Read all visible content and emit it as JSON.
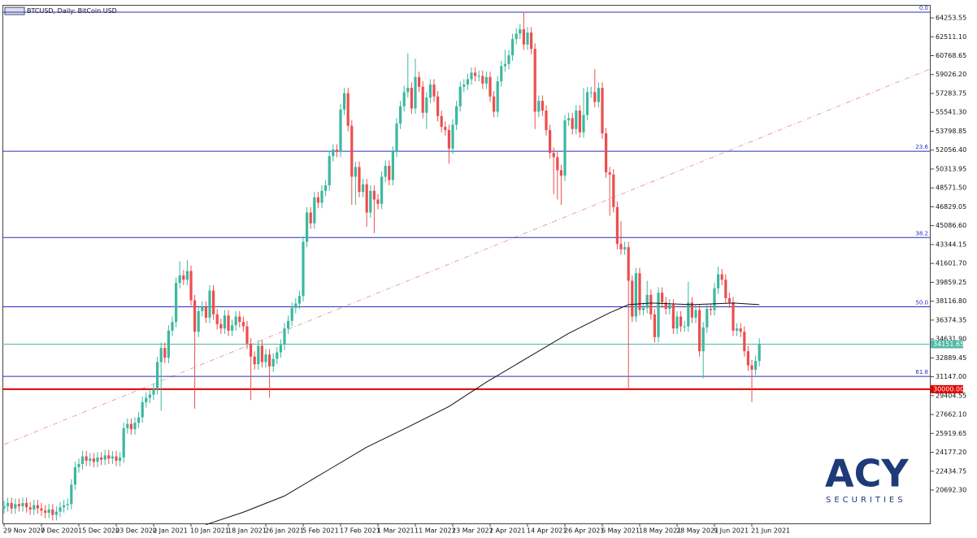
{
  "chart_data": {
    "type": "candlestick",
    "title": "BTCUSD, Daily:  BitCoin USD",
    "categories": [
      "29 Nov 2020",
      null,
      null,
      null,
      null,
      null,
      null,
      null,
      null,
      null,
      "7 Dec 2020",
      null,
      null,
      null,
      null,
      null,
      null,
      null,
      null,
      null,
      "15 Dec 2020",
      null,
      null,
      null,
      null,
      null,
      null,
      null,
      null,
      null,
      "23 Dec 2020",
      null,
      null,
      null,
      null,
      null,
      null,
      null,
      null,
      null,
      "2 Jan 2021",
      null,
      null,
      null,
      null,
      null,
      null,
      null,
      null,
      null,
      "10 Jan 2021",
      null,
      null,
      null,
      null,
      null,
      null,
      null,
      null,
      null,
      "18 Jan 2021",
      null,
      null,
      null,
      null,
      null,
      null,
      null,
      null,
      null,
      "26 Jan 2021",
      null,
      null,
      null,
      null,
      null,
      null,
      null,
      null,
      null,
      "5 Feb 2021",
      null,
      null,
      null,
      null,
      null,
      null,
      null,
      null,
      null,
      "17 Feb 2021",
      null,
      null,
      null,
      null,
      null,
      null,
      null,
      null,
      null,
      "1 Mar 2021",
      null,
      null,
      null,
      null,
      null,
      null,
      null,
      null,
      null,
      "11 Mar 2021",
      null,
      null,
      null,
      null,
      null,
      null,
      null,
      null,
      null,
      "23 Mar 2021",
      null,
      null,
      null,
      null,
      null,
      null,
      null,
      null,
      null,
      "2 Apr 2021",
      null,
      null,
      null,
      null,
      null,
      null,
      null,
      null,
      null,
      "14 Apr 2021",
      null,
      null,
      null,
      null,
      null,
      null,
      null,
      null,
      null,
      "26 Apr 2021",
      null,
      null,
      null,
      null,
      null,
      null,
      null,
      null,
      null,
      "6 May 2021",
      null,
      null,
      null,
      null,
      null,
      null,
      null,
      null,
      null,
      "18 May 2021",
      null,
      null,
      null,
      null,
      null,
      null,
      null,
      null,
      null,
      "28 May 2021",
      null,
      null,
      null,
      null,
      null,
      null,
      null,
      null,
      null,
      "9 Jun 2021",
      null,
      null,
      null,
      null,
      null,
      null,
      null,
      null,
      null,
      "21 Jun 2021",
      null,
      null
    ],
    "open": [
      19000,
      19200,
      19500,
      19000,
      19400,
      19200,
      19500,
      19100,
      18900,
      19300,
      19000,
      18800,
      18600,
      18900,
      18400,
      18700,
      19100,
      19300,
      19400,
      21200,
      22800,
      23100,
      23800,
      23400,
      23600,
      23300,
      23700,
      23500,
      23900,
      23600,
      23800,
      23400,
      23700,
      26400,
      26800,
      26300,
      26900,
      27400,
      28800,
      29200,
      29500,
      30000,
      32500,
      33800,
      32900,
      35400,
      36200,
      39800,
      40500,
      40100,
      40900,
      38200,
      35300,
      37200,
      37600,
      36600,
      39100,
      36900,
      36000,
      35600,
      36800,
      35400,
      35900,
      36700,
      36200,
      35800,
      34200,
      33000,
      32300,
      34000,
      32500,
      33200,
      32100,
      32800,
      33400,
      34100,
      35600,
      36300,
      37500,
      37900,
      38600,
      43600,
      46300,
      45300,
      47700,
      47200,
      48300,
      48800,
      51500,
      52100,
      51900,
      55800,
      57300,
      54300,
      49600,
      50500,
      48200,
      48900,
      46300,
      48300,
      47500,
      47100,
      49600,
      50600,
      49300,
      51900,
      54500,
      56100,
      57400,
      57800,
      55900,
      58800,
      57900,
      55500,
      56900,
      58100,
      57000,
      55200,
      54200,
      53900,
      52200,
      54400,
      56100,
      57900,
      58100,
      58600,
      59200,
      58900,
      58900,
      58200,
      58800,
      57000,
      55600,
      58400,
      59800,
      60000,
      60800,
      62300,
      62800,
      63200,
      61800,
      62900,
      61400,
      55600,
      56600,
      55700,
      53900,
      51800,
      51400,
      50200,
      49700,
      54800,
      55000,
      54000,
      55700,
      53700,
      55300,
      57400,
      57400,
      56500,
      57800,
      53600,
      50000,
      49800,
      46800,
      43400,
      42900,
      43100,
      40000,
      36700,
      40700,
      37300,
      37500,
      38700,
      36900,
      34800,
      38900,
      38000,
      37400,
      37800,
      35600,
      36700,
      35800,
      35800,
      38000,
      36600,
      37300,
      33500,
      35700,
      37400,
      37300,
      39300,
      40600,
      40100,
      38400,
      38000,
      35400,
      35600,
      35300,
      33500,
      32200,
      31800,
      32600
    ],
    "high": [
      19700,
      20000,
      20000,
      19900,
      19900,
      20000,
      20000,
      19600,
      19800,
      19800,
      19500,
      19300,
      19400,
      19400,
      19200,
      19600,
      19800,
      19900,
      21700,
      23300,
      23600,
      24300,
      24300,
      24100,
      24100,
      24200,
      24200,
      24400,
      24400,
      24300,
      24300,
      24200,
      26900,
      27300,
      27300,
      27400,
      27900,
      29300,
      29700,
      30000,
      30500,
      33000,
      34300,
      34300,
      35900,
      36700,
      40300,
      41800,
      41000,
      41900,
      41400,
      38700,
      37700,
      38100,
      38100,
      39600,
      39600,
      37400,
      36500,
      37300,
      37300,
      36400,
      37200,
      37200,
      36700,
      36300,
      34700,
      33500,
      34500,
      34500,
      33700,
      33700,
      33300,
      33900,
      34600,
      36100,
      36800,
      38000,
      38400,
      39100,
      44100,
      46800,
      46800,
      48200,
      48200,
      48800,
      49300,
      52000,
      52600,
      52600,
      56300,
      57800,
      57800,
      54800,
      51000,
      51000,
      49400,
      49400,
      48800,
      48800,
      48000,
      50100,
      51100,
      51100,
      52400,
      55000,
      56600,
      58000,
      61000,
      58300,
      60500,
      59300,
      58400,
      57400,
      58600,
      58600,
      57500,
      55700,
      54700,
      54400,
      54900,
      56600,
      58400,
      58600,
      59100,
      59700,
      59700,
      59400,
      59400,
      59300,
      59300,
      57500,
      58900,
      60300,
      61300,
      61300,
      62800,
      63300,
      63700,
      64800,
      63400,
      63400,
      61900,
      57100,
      57100,
      56200,
      54400,
      52300,
      51900,
      50700,
      55300,
      55500,
      55500,
      56200,
      56200,
      57800,
      57900,
      57900,
      59500,
      58300,
      58300,
      54100,
      50500,
      50300,
      47300,
      45500,
      43600,
      43600,
      40500,
      41200,
      41200,
      38000,
      40000,
      39200,
      37400,
      39400,
      39400,
      38500,
      38300,
      38300,
      37200,
      37200,
      36300,
      39900,
      38500,
      37800,
      37800,
      36200,
      37900,
      37900,
      39800,
      41300,
      41100,
      40600,
      38900,
      38500,
      36100,
      36100,
      35800,
      34000,
      32700,
      33100,
      34700
    ],
    "low": [
      18500,
      18700,
      18500,
      18500,
      18700,
      18700,
      18600,
      18400,
      18400,
      18500,
      18300,
      18100,
      18100,
      17900,
      17900,
      18200,
      18600,
      18800,
      18900,
      20700,
      22300,
      22600,
      22900,
      22900,
      22800,
      22800,
      23000,
      23000,
      23100,
      23100,
      22900,
      22900,
      23200,
      25900,
      25800,
      25800,
      26400,
      26900,
      28300,
      28700,
      29000,
      29500,
      28000,
      32400,
      32400,
      34900,
      35700,
      39300,
      39600,
      39600,
      37700,
      28200,
      34800,
      36700,
      36100,
      36100,
      36400,
      35500,
      35100,
      35100,
      34900,
      34900,
      35400,
      35700,
      35300,
      33700,
      29000,
      31800,
      31800,
      32000,
      32000,
      29200,
      31600,
      32300,
      32900,
      33600,
      35100,
      35800,
      37000,
      37400,
      38100,
      43100,
      44800,
      44800,
      46700,
      46700,
      47800,
      48300,
      51000,
      51400,
      51400,
      55300,
      53800,
      47000,
      47000,
      47700,
      47700,
      45000,
      45800,
      44400,
      46600,
      46600,
      49100,
      48800,
      48800,
      51400,
      54000,
      55600,
      56900,
      55400,
      55400,
      57400,
      55000,
      54000,
      56400,
      56500,
      54700,
      53700,
      53400,
      50800,
      51700,
      53900,
      55600,
      57400,
      57600,
      58100,
      58400,
      58400,
      57700,
      57700,
      56500,
      55100,
      55100,
      57900,
      59300,
      59500,
      60300,
      61800,
      62300,
      61300,
      61300,
      60900,
      54000,
      55100,
      55200,
      53400,
      51300,
      48000,
      47500,
      47000,
      49200,
      54300,
      53500,
      53500,
      53200,
      53200,
      54800,
      56900,
      56000,
      56000,
      53100,
      49500,
      46000,
      46300,
      42900,
      42400,
      42400,
      30000,
      36200,
      36200,
      36800,
      36800,
      37000,
      36400,
      34300,
      34300,
      37500,
      36900,
      36900,
      35100,
      35100,
      35300,
      35300,
      35300,
      36100,
      36100,
      33000,
      31000,
      35200,
      36800,
      36800,
      38800,
      39600,
      37900,
      37500,
      34900,
      34900,
      34800,
      33000,
      31700,
      28800,
      31300,
      32100
    ],
    "close": [
      19200,
      19500,
      19000,
      19400,
      19200,
      19500,
      19100,
      18900,
      19300,
      19000,
      18800,
      18600,
      18900,
      18400,
      18700,
      19100,
      19300,
      19400,
      21200,
      22800,
      23100,
      23800,
      23400,
      23600,
      23300,
      23700,
      23500,
      23900,
      23600,
      23800,
      23400,
      23700,
      26400,
      26800,
      26300,
      26900,
      27400,
      28800,
      29200,
      29500,
      30000,
      32500,
      33800,
      32900,
      35400,
      36200,
      39800,
      40500,
      40100,
      40900,
      38200,
      35300,
      37200,
      37600,
      36600,
      39100,
      36900,
      36000,
      35600,
      36800,
      35400,
      35900,
      36700,
      36200,
      35800,
      34200,
      33000,
      32300,
      34000,
      32500,
      33200,
      32100,
      32800,
      33400,
      34100,
      35600,
      36300,
      37500,
      37900,
      38600,
      43600,
      46300,
      45300,
      47700,
      47200,
      48300,
      48800,
      51500,
      52100,
      51900,
      55800,
      57300,
      54300,
      49600,
      50500,
      48200,
      48900,
      46300,
      48300,
      47500,
      47100,
      49600,
      50600,
      49300,
      51900,
      54500,
      56100,
      57400,
      57800,
      55900,
      58800,
      57900,
      55500,
      56900,
      58100,
      57000,
      55200,
      54200,
      53900,
      52200,
      54400,
      56100,
      57900,
      58100,
      58600,
      59200,
      58900,
      58900,
      58200,
      58800,
      57000,
      55600,
      58400,
      59800,
      60000,
      60800,
      62300,
      62800,
      63200,
      61800,
      62900,
      61400,
      55600,
      56600,
      55700,
      53900,
      51800,
      51400,
      50200,
      49700,
      54800,
      55000,
      54000,
      55700,
      53700,
      55300,
      57400,
      57400,
      56500,
      57800,
      53600,
      50000,
      49800,
      46800,
      43400,
      42900,
      43100,
      40000,
      36700,
      40700,
      37300,
      37500,
      38700,
      36900,
      34800,
      38900,
      38000,
      37400,
      37800,
      35600,
      36700,
      35800,
      35800,
      38000,
      36600,
      37300,
      33500,
      35700,
      37400,
      37300,
      39300,
      40600,
      40100,
      38400,
      38000,
      35400,
      35600,
      35300,
      33500,
      32200,
      31800,
      32600,
      34151.65
    ],
    "up_color": "#3cb8a0",
    "down_color": "#ec4e4e",
    "ylim": [
      17620,
      65380
    ],
    "yticks": [
      {
        "value": 64253.55,
        "label": "64253.55"
      },
      {
        "value": 62511.1,
        "label": "62511.10"
      },
      {
        "value": 60768.65,
        "label": "60768.65"
      },
      {
        "value": 59026.2,
        "label": "59026.20"
      },
      {
        "value": 57283.75,
        "label": "57283.75"
      },
      {
        "value": 55541.3,
        "label": "55541.30"
      },
      {
        "value": 53798.85,
        "label": "53798.85"
      },
      {
        "value": 52056.4,
        "label": "52056.40"
      },
      {
        "value": 50313.95,
        "label": "50313.95"
      },
      {
        "value": 48571.5,
        "label": "48571.50"
      },
      {
        "value": 46829.05,
        "label": "46829.05"
      },
      {
        "value": 45086.6,
        "label": "45086.60"
      },
      {
        "value": 43344.15,
        "label": "43344.15"
      },
      {
        "value": 41601.7,
        "label": "41601.70"
      },
      {
        "value": 39859.25,
        "label": "39859.25"
      },
      {
        "value": 38116.8,
        "label": "38116.80"
      },
      {
        "value": 36374.35,
        "label": "36374.35"
      },
      {
        "value": 34631.9,
        "label": "34631.90"
      },
      {
        "value": 32889.45,
        "label": "32889.45"
      },
      {
        "value": 31147.0,
        "label": "31147.00"
      },
      {
        "value": 29404.55,
        "label": "29404.55"
      },
      {
        "value": 27662.1,
        "label": "27662.10"
      },
      {
        "value": 25919.65,
        "label": "25919.65"
      },
      {
        "value": 24177.2,
        "label": "24177.20"
      },
      {
        "value": 22434.75,
        "label": "22434.75"
      },
      {
        "value": 20692.3,
        "label": "20692.30"
      }
    ],
    "ma": {
      "color": "#111111",
      "x": [
        54,
        64,
        75,
        86,
        97,
        108,
        119,
        129,
        140,
        151,
        162,
        167,
        173,
        184,
        195,
        202
      ],
      "values": [
        17500,
        18650,
        20150,
        22400,
        24650,
        26500,
        28400,
        30650,
        32900,
        35150,
        37050,
        37800,
        37950,
        37800,
        37950,
        37800
      ]
    },
    "level_color": "#2b2bc0",
    "levels": [
      {
        "label": "0.0",
        "value": 64780
      },
      {
        "label": "23.6",
        "value": 51950
      },
      {
        "label": "38.2",
        "value": 43990
      },
      {
        "label": "50.0",
        "value": 37600
      },
      {
        "label": "61.8",
        "value": 31180
      }
    ],
    "hlines": [
      {
        "value": 34151.65,
        "label": "34151.65",
        "color": "#52b8a8"
      },
      {
        "value": 30000,
        "label": "30000.00",
        "color": "#e00000"
      }
    ],
    "logo": {
      "text": "ACY",
      "subtext": "SECURITIES"
    }
  }
}
